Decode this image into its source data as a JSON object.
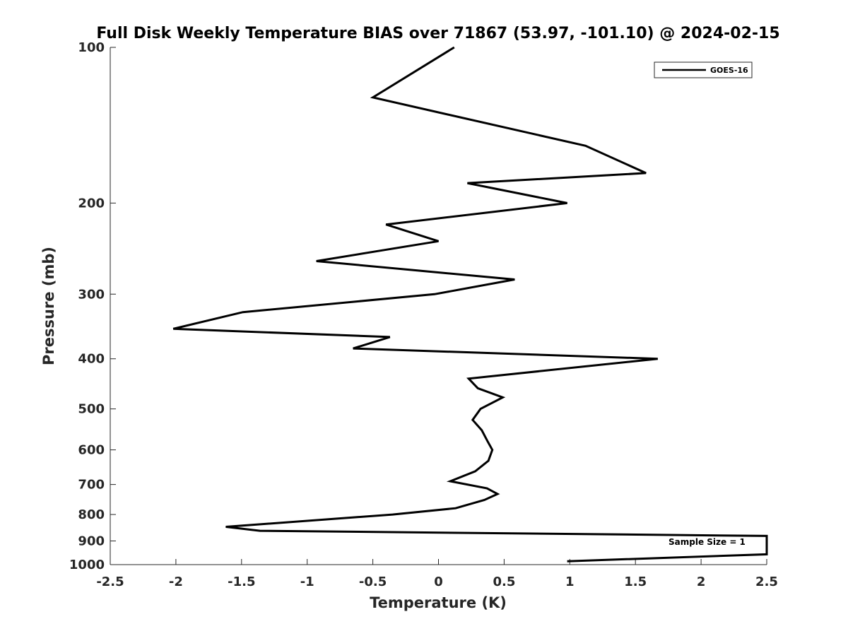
{
  "chart_data": {
    "type": "line",
    "title": "Full Disk Weekly Temperature BIAS over 71867 (53.97, -101.10) @ 2024-02-15",
    "xlabel": "Temperature (K)",
    "ylabel": "Pressure (mb)",
    "xlim": [
      -2.5,
      2.5
    ],
    "ylim": [
      1000,
      100
    ],
    "yscale": "log",
    "y_reversed": true,
    "x_ticks": [
      -2.5,
      -2,
      -1.5,
      -1,
      -0.5,
      0,
      0.5,
      1,
      1.5,
      2,
      2.5
    ],
    "x_tick_labels": [
      "-2.5",
      "-2",
      "-1.5",
      "-1",
      "-0.5",
      "0",
      "0.5",
      "1",
      "1.5",
      "2",
      "2.5"
    ],
    "y_ticks": [
      100,
      200,
      300,
      400,
      500,
      600,
      700,
      800,
      900,
      1000
    ],
    "y_tick_labels": [
      "100",
      "200",
      "300",
      "400",
      "500",
      "600",
      "700",
      "800",
      "900",
      "1000"
    ],
    "grid": false,
    "legend": {
      "position": "top-right",
      "entries": [
        "GOES-16"
      ]
    },
    "color": "#000000",
    "annotation": "Sample Size = 1",
    "series": [
      {
        "name": "GOES-16",
        "x": [
          0.12,
          -0.5,
          1.12,
          1.58,
          0.22,
          0.98,
          -0.4,
          0.0,
          -0.93,
          0.58,
          -0.03,
          -1.49,
          -2.02,
          -0.37,
          -0.65,
          1.67,
          0.23,
          0.3,
          0.49,
          0.32,
          0.26,
          0.33,
          0.37,
          0.41,
          0.38,
          0.28,
          0.09,
          0.37,
          0.45,
          0.35,
          0.13,
          -0.35,
          -1.62,
          -1.36,
          2.5,
          2.5,
          0.98
        ],
        "y": [
          100,
          125,
          155,
          175,
          183,
          200,
          220,
          237,
          259,
          281,
          300,
          325,
          350,
          363,
          382,
          400,
          437,
          456,
          475,
          500,
          525,
          550,
          575,
          600,
          630,
          660,
          690,
          712,
          730,
          750,
          778,
          800,
          845,
          860,
          880,
          955,
          985
        ]
      }
    ]
  }
}
